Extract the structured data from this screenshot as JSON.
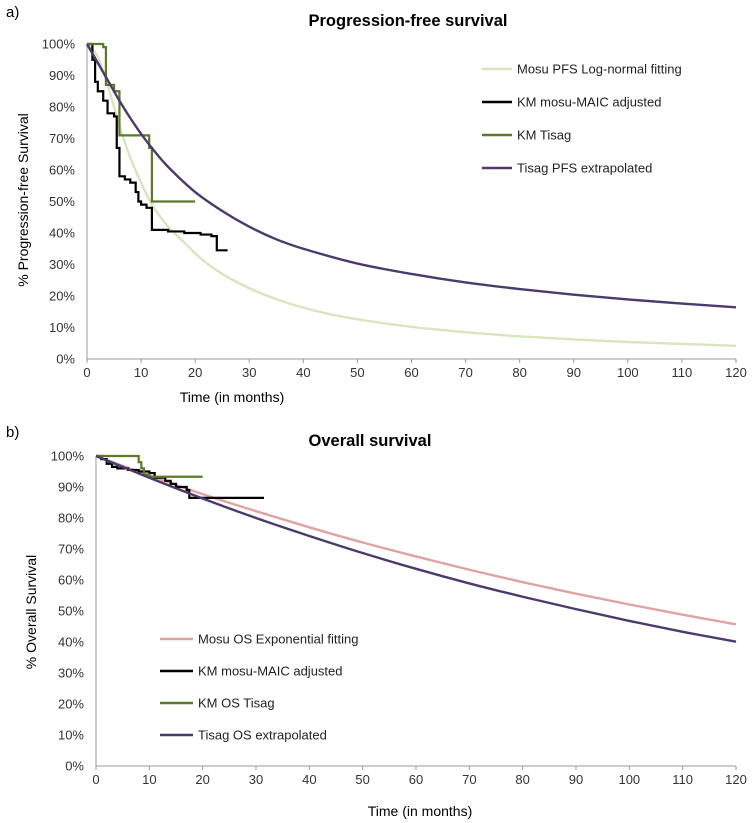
{
  "chart_data": [
    {
      "type": "line",
      "panel_label": "a)",
      "title": "Progression-free survival",
      "xlabel": "Time (in months)",
      "ylabel": "% Progression-free Survival",
      "xlim": [
        0,
        120
      ],
      "ylim": [
        0,
        100
      ],
      "x_ticks": [
        0,
        10,
        20,
        30,
        40,
        50,
        60,
        70,
        80,
        90,
        100,
        110,
        120
      ],
      "y_ticks": [
        0,
        10,
        20,
        30,
        40,
        50,
        60,
        70,
        80,
        90,
        100
      ],
      "y_tick_labels": [
        "0%",
        "10%",
        "20%",
        "30%",
        "40%",
        "50%",
        "60%",
        "70%",
        "80%",
        "90%",
        "100%"
      ],
      "grid": false,
      "legend_position": "right",
      "series": [
        {
          "name": "Mosu PFS Log-normal fitting",
          "color": "#d9e5bf",
          "style": "smooth",
          "points": [
            [
              0,
              100
            ],
            [
              2,
              96
            ],
            [
              4,
              86
            ],
            [
              6,
              74
            ],
            [
              8,
              64
            ],
            [
              10,
              56
            ],
            [
              12,
              49
            ],
            [
              15,
              42
            ],
            [
              18,
              37
            ],
            [
              21,
              32
            ],
            [
              25,
              27
            ],
            [
              30,
              22.5
            ],
            [
              35,
              19
            ],
            [
              40,
              16.3
            ],
            [
              45,
              14.2
            ],
            [
              50,
              12.6
            ],
            [
              60,
              10.2
            ],
            [
              70,
              8.5
            ],
            [
              80,
              7.2
            ],
            [
              90,
              6.2
            ],
            [
              100,
              5.4
            ],
            [
              110,
              4.8
            ],
            [
              120,
              4.2
            ]
          ]
        },
        {
          "name": "KM mosu-MAIC adjusted",
          "color": "#000000",
          "style": "step",
          "points": [
            [
              0,
              100
            ],
            [
              1,
              95
            ],
            [
              1.5,
              88
            ],
            [
              2,
              85
            ],
            [
              3,
              82
            ],
            [
              3.8,
              78
            ],
            [
              5,
              77
            ],
            [
              5.5,
              67
            ],
            [
              6,
              58
            ],
            [
              7,
              57
            ],
            [
              8,
              56
            ],
            [
              9,
              53
            ],
            [
              9.5,
              50
            ],
            [
              10,
              49
            ],
            [
              11,
              48
            ],
            [
              12,
              41
            ],
            [
              15,
              40.5
            ],
            [
              18,
              40
            ],
            [
              21,
              39.5
            ],
            [
              23,
              39
            ],
            [
              24,
              34.5
            ],
            [
              26,
              34.5
            ]
          ]
        },
        {
          "name": "KM Tisag",
          "color": "#5a7a2a",
          "style": "step",
          "points": [
            [
              0,
              100
            ],
            [
              3,
              99
            ],
            [
              3.5,
              87
            ],
            [
              5,
              85
            ],
            [
              6,
              71
            ],
            [
              11,
              71
            ],
            [
              11.5,
              67
            ],
            [
              12,
              50
            ],
            [
              20,
              50
            ]
          ]
        },
        {
          "name": "Tisag PFS extrapolated",
          "color": "#4b3a6b",
          "style": "smooth",
          "points": [
            [
              0,
              100
            ],
            [
              2,
              94
            ],
            [
              4,
              88
            ],
            [
              6,
              82
            ],
            [
              8,
              76.5
            ],
            [
              10,
              71.5
            ],
            [
              12,
              67
            ],
            [
              15,
              61
            ],
            [
              20,
              53
            ],
            [
              25,
              47
            ],
            [
              30,
              42
            ],
            [
              35,
              38
            ],
            [
              40,
              35
            ],
            [
              50,
              30.3
            ],
            [
              60,
              27
            ],
            [
              70,
              24.3
            ],
            [
              80,
              22.2
            ],
            [
              90,
              20.4
            ],
            [
              100,
              18.9
            ],
            [
              110,
              17.6
            ],
            [
              120,
              16.4
            ]
          ]
        }
      ]
    },
    {
      "type": "line",
      "panel_label": "b)",
      "title": "Overall survival",
      "xlabel": "Time (in months)",
      "ylabel": "% Overall Survival",
      "xlim": [
        0,
        120
      ],
      "ylim": [
        0,
        100
      ],
      "x_ticks": [
        0,
        10,
        20,
        30,
        40,
        50,
        60,
        70,
        80,
        90,
        100,
        110,
        120
      ],
      "y_ticks": [
        0,
        10,
        20,
        30,
        40,
        50,
        60,
        70,
        80,
        90,
        100
      ],
      "y_tick_labels": [
        "0%",
        "10%",
        "20%",
        "30%",
        "40%",
        "50%",
        "60%",
        "70%",
        "80%",
        "90%",
        "100%"
      ],
      "grid": false,
      "legend_position": "bottom-left",
      "series": [
        {
          "name": "Mosu OS Exponential fitting",
          "color": "#e0a3a3",
          "style": "smooth",
          "points": [
            [
              0,
              100
            ],
            [
              10,
              93.7
            ],
            [
              20,
              87.7
            ],
            [
              30,
              82.2
            ],
            [
              40,
              77
            ],
            [
              50,
              72.1
            ],
            [
              60,
              67.6
            ],
            [
              70,
              63.3
            ],
            [
              80,
              59.3
            ],
            [
              90,
              55.6
            ],
            [
              100,
              52.1
            ],
            [
              110,
              48.8
            ],
            [
              120,
              45.7
            ]
          ]
        },
        {
          "name": "KM mosu-MAIC adjusted",
          "color": "#000000",
          "style": "step",
          "points": [
            [
              0,
              100
            ],
            [
              1,
              99
            ],
            [
              2,
              97.5
            ],
            [
              3,
              96.5
            ],
            [
              4,
              96
            ],
            [
              6,
              95.5
            ],
            [
              8,
              95
            ],
            [
              10,
              94.5
            ],
            [
              11,
              93
            ],
            [
              13,
              92
            ],
            [
              14,
              91
            ],
            [
              15,
              90
            ],
            [
              17,
              89
            ],
            [
              17.5,
              86.5
            ],
            [
              20,
              86.5
            ],
            [
              25,
              86.5
            ],
            [
              31.5,
              86.5
            ]
          ]
        },
        {
          "name": "KM OS Tisag",
          "color": "#5a7a2a",
          "style": "step",
          "points": [
            [
              0,
              100
            ],
            [
              7,
              100
            ],
            [
              8,
              98
            ],
            [
              8.5,
              96
            ],
            [
              9,
              94
            ],
            [
              10,
              93.3
            ],
            [
              20,
              93.3
            ]
          ]
        },
        {
          "name": "Tisag OS extrapolated",
          "color": "#4b3a6b",
          "style": "smooth",
          "points": [
            [
              0,
              100
            ],
            [
              10,
              93
            ],
            [
              20,
              86.3
            ],
            [
              30,
              80
            ],
            [
              40,
              74.2
            ],
            [
              50,
              68.7
            ],
            [
              60,
              63.6
            ],
            [
              70,
              58.9
            ],
            [
              80,
              54.6
            ],
            [
              90,
              50.6
            ],
            [
              100,
              46.8
            ],
            [
              110,
              43.3
            ],
            [
              120,
              40.1
            ]
          ]
        }
      ]
    }
  ]
}
